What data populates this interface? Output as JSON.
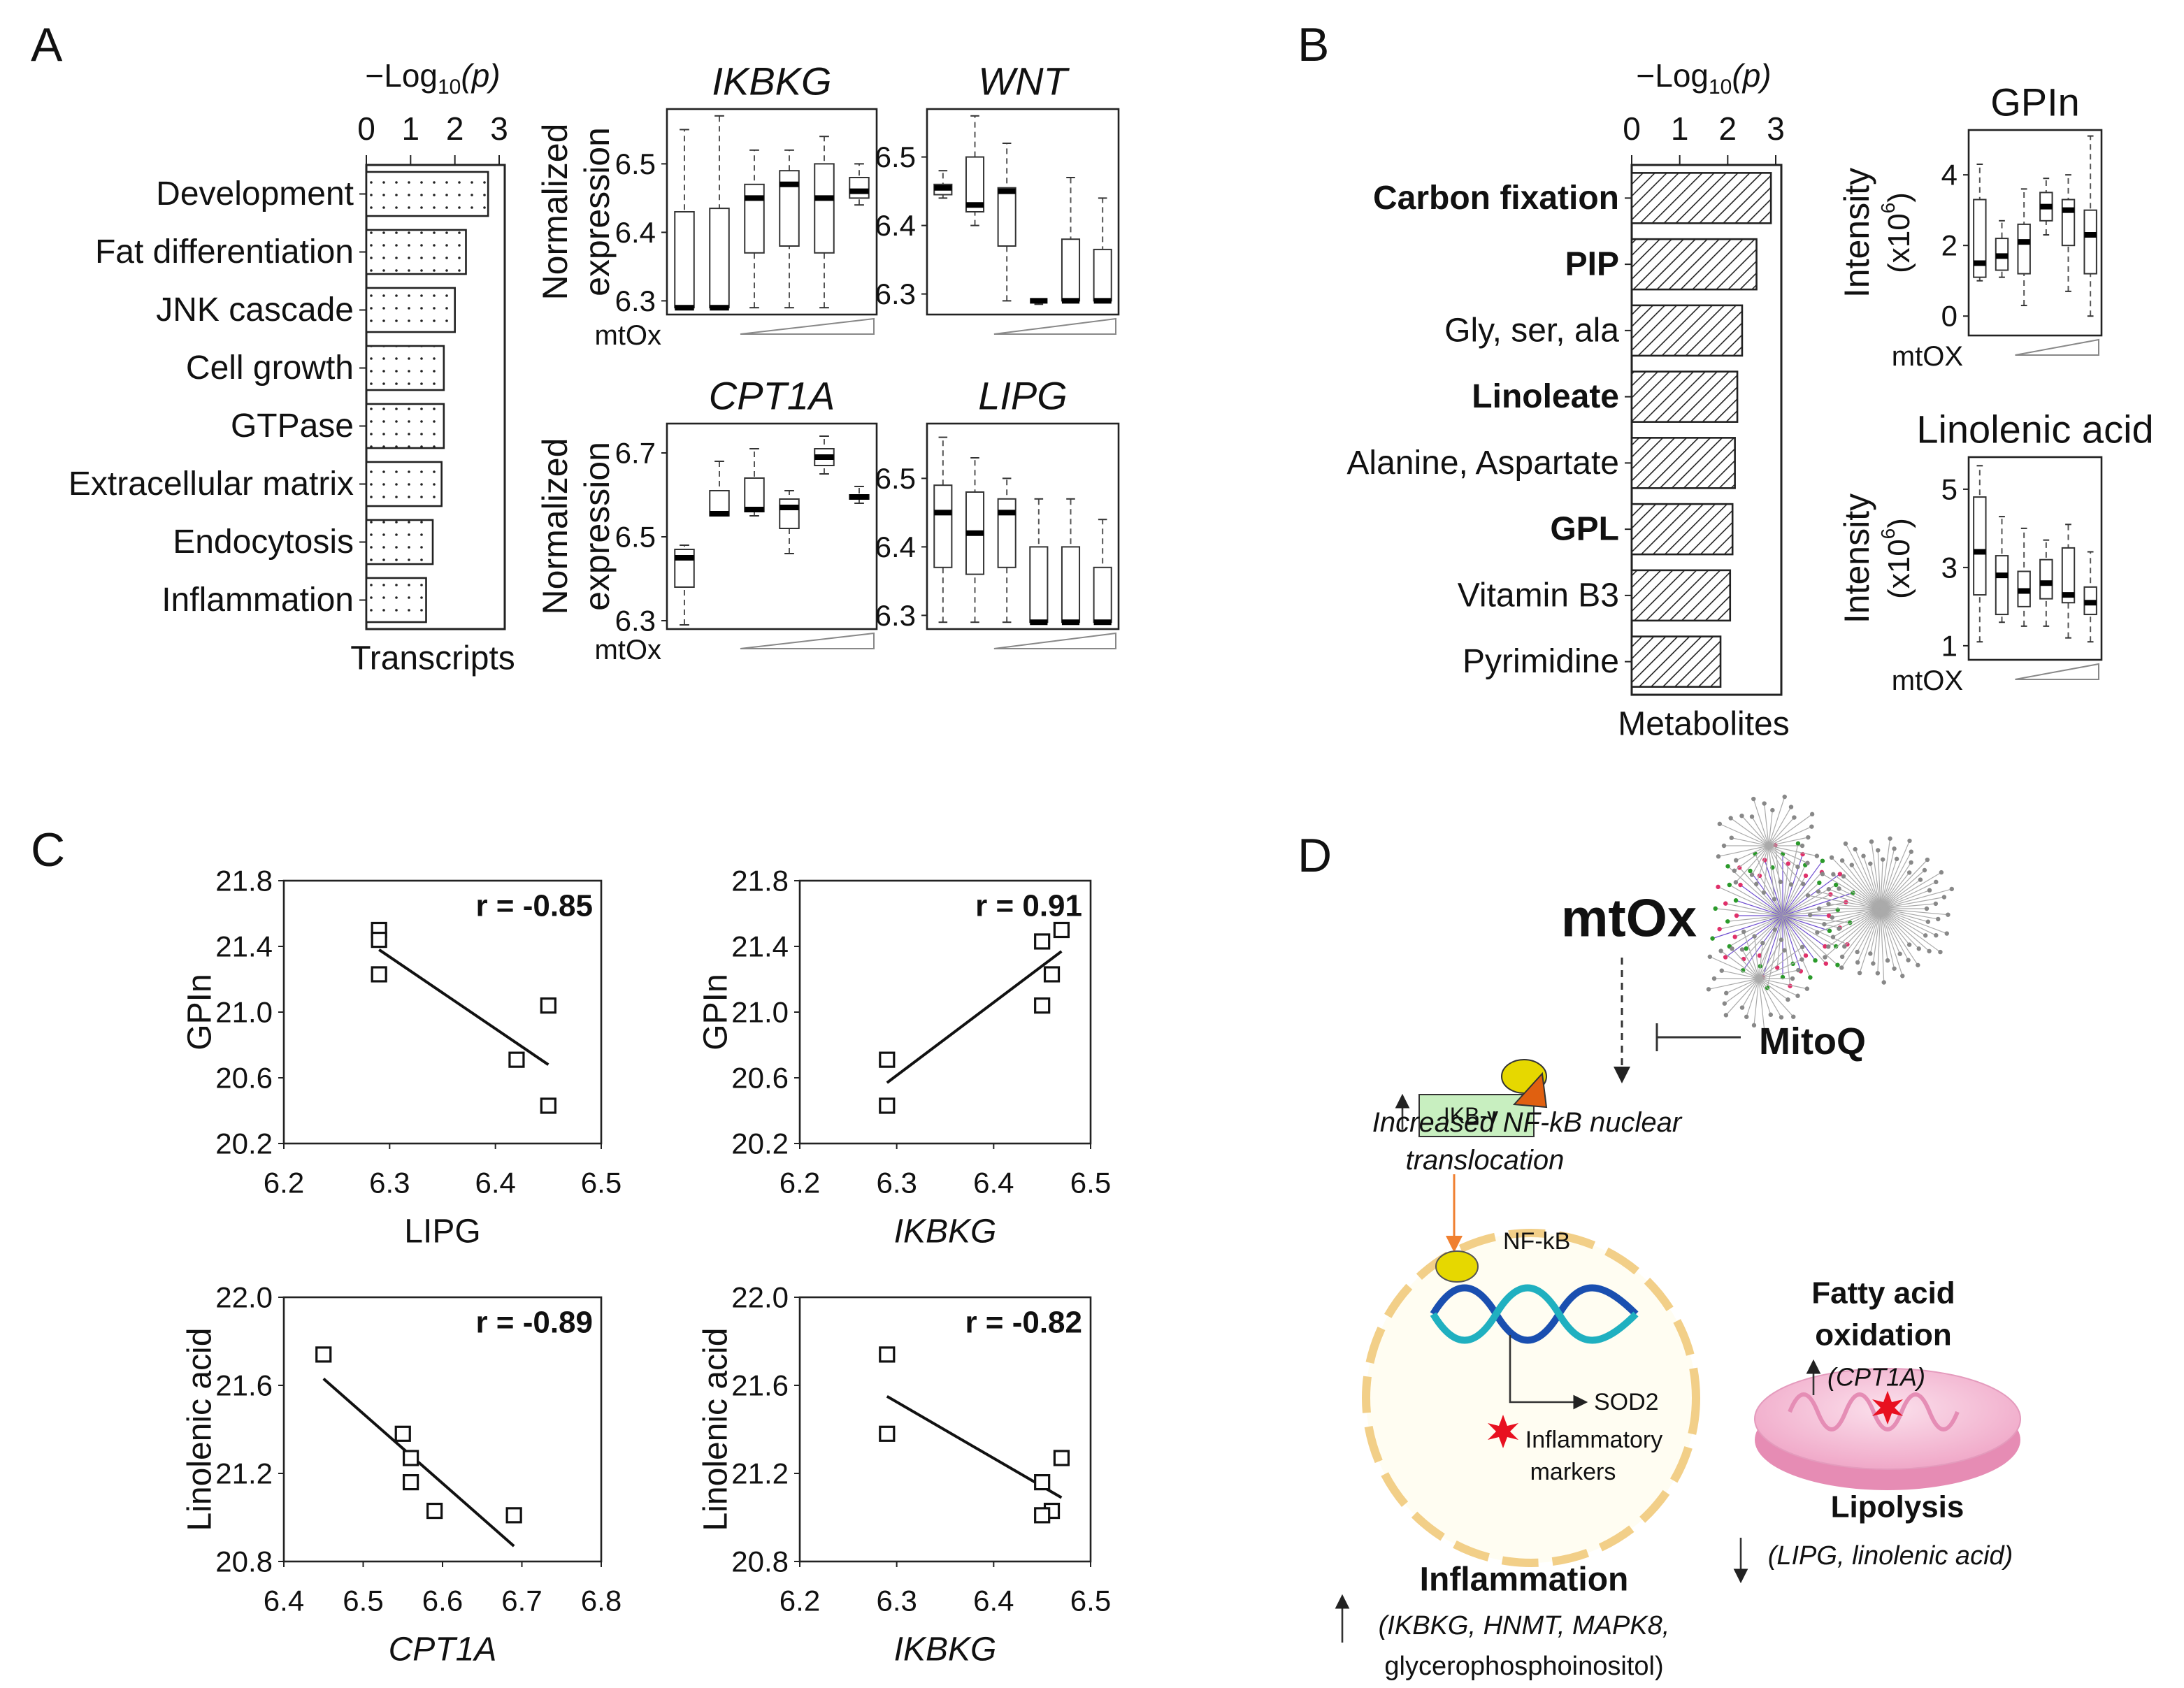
{
  "panel_labels": [
    "A",
    "B",
    "C",
    "D"
  ],
  "chart_data": [
    {
      "type": "hbar",
      "title": [
        "−Log",
        "10",
        "(p)"
      ],
      "categories": [
        "Development",
        "Fat differentiation",
        "JNK cascade",
        "Cell growth",
        "GTPase",
        "Extracellular matrix",
        "Endocytosis",
        "Inflammation"
      ],
      "values": [
        2.75,
        2.25,
        2.0,
        1.75,
        1.75,
        1.7,
        1.5,
        1.35
      ],
      "bold": [
        false,
        false,
        false,
        false,
        false,
        false,
        false,
        false
      ],
      "xlim": [
        0,
        3
      ],
      "xticks": [
        0,
        1,
        2,
        3
      ],
      "x_label": "Transcripts",
      "pattern": "dots"
    },
    {
      "type": "box",
      "title": "IKBKG",
      "title_italic": true,
      "y_label": [
        "Normalized",
        "expression"
      ],
      "x_label": "mtOx",
      "ylim": [
        6.28,
        6.58
      ],
      "yticks": [
        6.3,
        6.4,
        6.5
      ],
      "boxes": [
        {
          "min": 6.29,
          "q1": 6.29,
          "median": 6.29,
          "q3": 6.43,
          "max": 6.55
        },
        {
          "min": 6.29,
          "q1": 6.29,
          "median": 6.29,
          "q3": 6.435,
          "max": 6.57
        },
        {
          "min": 6.29,
          "q1": 6.37,
          "median": 6.45,
          "q3": 6.47,
          "max": 6.52
        },
        {
          "min": 6.29,
          "q1": 6.38,
          "median": 6.47,
          "q3": 6.49,
          "max": 6.52
        },
        {
          "min": 6.29,
          "q1": 6.37,
          "median": 6.45,
          "q3": 6.5,
          "max": 6.54
        },
        {
          "min": 6.44,
          "q1": 6.45,
          "median": 6.46,
          "q3": 6.48,
          "max": 6.5
        }
      ]
    },
    {
      "type": "box",
      "title": "WNT",
      "title_italic": true,
      "ylim": [
        6.27,
        6.57
      ],
      "yticks": [
        6.3,
        6.4,
        6.5
      ],
      "boxes": [
        {
          "min": 6.44,
          "q1": 6.445,
          "median": 6.455,
          "q3": 6.46,
          "max": 6.48
        },
        {
          "min": 6.4,
          "q1": 6.42,
          "median": 6.43,
          "q3": 6.5,
          "max": 6.56
        },
        {
          "min": 6.29,
          "q1": 6.37,
          "median": 6.45,
          "q3": 6.455,
          "max": 6.52
        },
        {
          "min": 6.285,
          "q1": 6.29,
          "median": 6.29,
          "q3": 6.29,
          "max": 6.29
        },
        {
          "min": 6.29,
          "q1": 6.29,
          "median": 6.29,
          "q3": 6.38,
          "max": 6.47
        },
        {
          "min": 6.29,
          "q1": 6.29,
          "median": 6.29,
          "q3": 6.365,
          "max": 6.44
        }
      ]
    },
    {
      "type": "box",
      "title": "CPT1A",
      "title_italic": true,
      "y_label": [
        "Normalized",
        "expression"
      ],
      "x_label": "mtOx",
      "ylim": [
        6.28,
        6.77
      ],
      "yticks": [
        6.3,
        6.5,
        6.7
      ],
      "boxes": [
        {
          "min": 6.29,
          "q1": 6.38,
          "median": 6.45,
          "q3": 6.47,
          "max": 6.48
        },
        {
          "min": 6.55,
          "q1": 6.55,
          "median": 6.555,
          "q3": 6.61,
          "max": 6.68
        },
        {
          "min": 6.55,
          "q1": 6.56,
          "median": 6.565,
          "q3": 6.64,
          "max": 6.71
        },
        {
          "min": 6.46,
          "q1": 6.52,
          "median": 6.57,
          "q3": 6.59,
          "max": 6.61
        },
        {
          "min": 6.65,
          "q1": 6.67,
          "median": 6.69,
          "q3": 6.71,
          "max": 6.74
        },
        {
          "min": 6.58,
          "q1": 6.59,
          "median": 6.595,
          "q3": 6.6,
          "max": 6.62
        }
      ]
    },
    {
      "type": "box",
      "title": "LIPG",
      "title_italic": true,
      "ylim": [
        6.28,
        6.58
      ],
      "yticks": [
        6.3,
        6.4,
        6.5
      ],
      "boxes": [
        {
          "min": 6.29,
          "q1": 6.37,
          "median": 6.45,
          "q3": 6.49,
          "max": 6.56
        },
        {
          "min": 6.29,
          "q1": 6.36,
          "median": 6.42,
          "q3": 6.48,
          "max": 6.53
        },
        {
          "min": 6.29,
          "q1": 6.37,
          "median": 6.45,
          "q3": 6.47,
          "max": 6.5
        },
        {
          "min": 6.29,
          "q1": 6.29,
          "median": 6.29,
          "q3": 6.4,
          "max": 6.47
        },
        {
          "min": 6.29,
          "q1": 6.29,
          "median": 6.29,
          "q3": 6.4,
          "max": 6.47
        },
        {
          "min": 6.29,
          "q1": 6.29,
          "median": 6.29,
          "q3": 6.37,
          "max": 6.44
        }
      ]
    },
    {
      "type": "hbar",
      "title": [
        "−Log",
        "10",
        "(p)"
      ],
      "categories": [
        "Carbon fixation",
        "PIP",
        "Gly, ser, ala",
        "Linoleate",
        "Alanine, Aspartate",
        "GPL",
        "Vitamin B3",
        "Pyrimidine"
      ],
      "values": [
        2.9,
        2.6,
        2.3,
        2.2,
        2.15,
        2.1,
        2.05,
        1.85
      ],
      "bold": [
        true,
        true,
        false,
        true,
        false,
        true,
        false,
        false
      ],
      "xlim": [
        0,
        3
      ],
      "xticks": [
        0,
        1,
        2,
        3
      ],
      "x_label": "Metabolites",
      "pattern": "hatch"
    },
    {
      "type": "box",
      "title": "GPIn",
      "title_italic": false,
      "y_label": [
        "Intensity"
      ],
      "y_unit": [
        "(x10",
        "6",
        ")"
      ],
      "x_label": "mtOX",
      "ylim": [
        -0.55,
        5.27
      ],
      "yticks": [
        0,
        2,
        4
      ],
      "boxes": [
        {
          "min": 1.0,
          "q1": 1.1,
          "median": 1.5,
          "q3": 3.3,
          "max": 4.3
        },
        {
          "min": 1.1,
          "q1": 1.3,
          "median": 1.7,
          "q3": 2.2,
          "max": 2.7
        },
        {
          "min": 0.3,
          "q1": 1.2,
          "median": 2.1,
          "q3": 2.6,
          "max": 3.6
        },
        {
          "min": 2.3,
          "q1": 2.7,
          "median": 3.1,
          "q3": 3.5,
          "max": 3.9
        },
        {
          "min": 0.7,
          "q1": 2.0,
          "median": 3.0,
          "q3": 3.3,
          "max": 4.0
        },
        {
          "min": 0.0,
          "q1": 1.2,
          "median": 2.3,
          "q3": 3.0,
          "max": 5.1
        }
      ]
    },
    {
      "type": "box",
      "title": "Linolenic  acid",
      "title_italic": false,
      "y_label": [
        "Intensity"
      ],
      "y_unit": [
        "(x10",
        "6",
        ")"
      ],
      "x_label": "mtOX",
      "ylim": [
        0.64,
        5.82
      ],
      "yticks": [
        1,
        3,
        5
      ],
      "boxes": [
        {
          "min": 1.1,
          "q1": 2.3,
          "median": 3.4,
          "q3": 4.8,
          "max": 5.6
        },
        {
          "min": 1.6,
          "q1": 1.8,
          "median": 2.8,
          "q3": 3.3,
          "max": 4.3
        },
        {
          "min": 1.5,
          "q1": 2.0,
          "median": 2.4,
          "q3": 2.9,
          "max": 4.0
        },
        {
          "min": 1.5,
          "q1": 2.2,
          "median": 2.6,
          "q3": 3.2,
          "max": 3.7
        },
        {
          "min": 1.2,
          "q1": 2.1,
          "median": 2.3,
          "q3": 3.5,
          "max": 4.1
        },
        {
          "min": 1.1,
          "q1": 1.8,
          "median": 2.1,
          "q3": 2.5,
          "max": 3.4
        }
      ]
    },
    {
      "type": "scatter",
      "x": [
        6.29,
        6.29,
        6.29,
        6.45,
        6.42,
        6.45
      ],
      "y": [
        21.5,
        21.44,
        21.23,
        21.04,
        20.71,
        20.43
      ],
      "trend_x": [
        6.29,
        6.45
      ],
      "trend_y": [
        21.38,
        20.68
      ],
      "annotation": "r = -0.85",
      "x_label": "LIPG",
      "x_label_italic": false,
      "y_label": "GPIn",
      "xlim": [
        6.2,
        6.5
      ],
      "xticks": [
        6.2,
        6.3,
        6.4,
        6.5
      ],
      "ylim": [
        20.2,
        21.8
      ],
      "yticks": [
        20.2,
        20.6,
        {
          "value": 21,
          "label": "21.0"
        },
        21.4,
        21.8
      ]
    },
    {
      "type": "scatter",
      "x": [
        6.47,
        6.45,
        6.46,
        6.45,
        6.29,
        6.29
      ],
      "y": [
        21.5,
        21.43,
        21.23,
        21.04,
        20.71,
        20.43
      ],
      "trend_x": [
        6.29,
        6.47
      ],
      "trend_y": [
        20.57,
        21.37
      ],
      "annotation": "r = 0.91",
      "x_label": "IKBKG",
      "x_label_italic": true,
      "y_label": "GPIn",
      "xlim": [
        6.2,
        6.5
      ],
      "xticks": [
        6.2,
        6.3,
        6.4,
        6.5
      ],
      "ylim": [
        20.2,
        21.8
      ],
      "yticks": [
        20.2,
        20.6,
        {
          "value": 21,
          "label": "21.0"
        },
        21.4,
        21.8
      ]
    },
    {
      "type": "scatter",
      "x": [
        6.45,
        6.55,
        6.56,
        6.56,
        6.59,
        6.69
      ],
      "y": [
        21.74,
        21.38,
        21.27,
        21.16,
        21.03,
        21.01
      ],
      "trend_x": [
        6.45,
        6.69
      ],
      "trend_y": [
        21.63,
        20.87
      ],
      "annotation": "r = -0.89",
      "x_label": "CPT1A",
      "x_label_italic": true,
      "y_label": "Linolenic acid",
      "xlim": [
        6.4,
        6.8
      ],
      "xticks": [
        6.4,
        6.5,
        6.6,
        6.7,
        6.8
      ],
      "ylim": [
        20.8,
        22
      ],
      "yticks": [
        20.8,
        21.2,
        21.6,
        {
          "value": 22,
          "label": "22.0"
        }
      ]
    },
    {
      "type": "scatter",
      "x": [
        6.29,
        6.29,
        6.47,
        6.45,
        6.46,
        6.45
      ],
      "y": [
        21.74,
        21.38,
        21.27,
        21.16,
        21.03,
        21.01
      ],
      "trend_x": [
        6.29,
        6.47
      ],
      "trend_y": [
        21.55,
        21.09
      ],
      "annotation": "r = -0.82",
      "x_label": "IKBKG",
      "x_label_italic": true,
      "y_label": "Linolenic acid",
      "xlim": [
        6.2,
        6.5
      ],
      "xticks": [
        6.2,
        6.3,
        6.4,
        6.5
      ],
      "ylim": [
        20.8,
        22
      ],
      "yticks": [
        20.8,
        21.2,
        21.6,
        {
          "value": 22,
          "label": "22.0"
        }
      ]
    }
  ],
  "diagram": {
    "source": "mtOx",
    "inhibitor": "MitoQ",
    "protein": "IKB-γ",
    "translocation": [
      "Increased  NF-kB nuclear",
      "translocation"
    ],
    "factor": "NF-kB",
    "target": "SOD2",
    "markers": [
      "Inflammatory",
      "markers"
    ],
    "fao": [
      "Fatty acid",
      "oxidation"
    ],
    "fao_gene": "(CPT1A)",
    "lipolysis": "Lipolysis",
    "lipolysis_items": "(LIPG, linolenic acid)",
    "inflammation": "Inflammation",
    "inflammation_items": [
      "(IKBKG, HNMT, MAPK8,",
      "glycerophosphoinositol)"
    ]
  }
}
